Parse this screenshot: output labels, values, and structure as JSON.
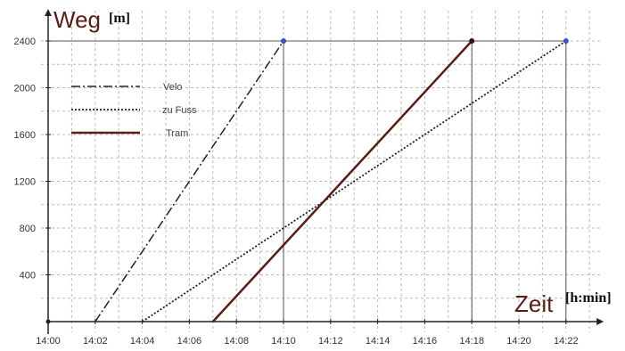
{
  "chart_data": {
    "type": "line",
    "xlabel": "Zeit",
    "xunit": "[h:min]",
    "ylabel": "Weg",
    "yunit": "[m]",
    "xlim": [
      "14:00",
      "14:23"
    ],
    "ylim": [
      0,
      2500
    ],
    "x_ticks": [
      "14:00",
      "14:02",
      "14:04",
      "14:06",
      "14:08",
      "14:10",
      "14:12",
      "14:14",
      "14:16",
      "14:18",
      "14:20",
      "14:22"
    ],
    "y_ticks": [
      "400",
      "800",
      "1200",
      "1600",
      "2000",
      "2400"
    ],
    "grid": true,
    "legend_position": "top-left",
    "series": [
      {
        "name": "Velo",
        "style": "dash-dot",
        "color": "#222222",
        "points": [
          [
            "14:02",
            0
          ],
          [
            "14:10",
            2400
          ]
        ]
      },
      {
        "name": "zu Fuss",
        "style": "dotted",
        "color": "#222222",
        "points": [
          [
            "14:04",
            0
          ],
          [
            "14:22",
            2400
          ]
        ]
      },
      {
        "name": "Tram",
        "style": "solid",
        "color": "#5a1d12",
        "points": [
          [
            "14:07",
            0
          ],
          [
            "14:18",
            2400
          ]
        ]
      }
    ],
    "colors": {
      "axis": "#222222",
      "grid": "#bbbbbb",
      "title": "#5a1d12",
      "endpoint_blue": "#3a4fc8"
    }
  }
}
